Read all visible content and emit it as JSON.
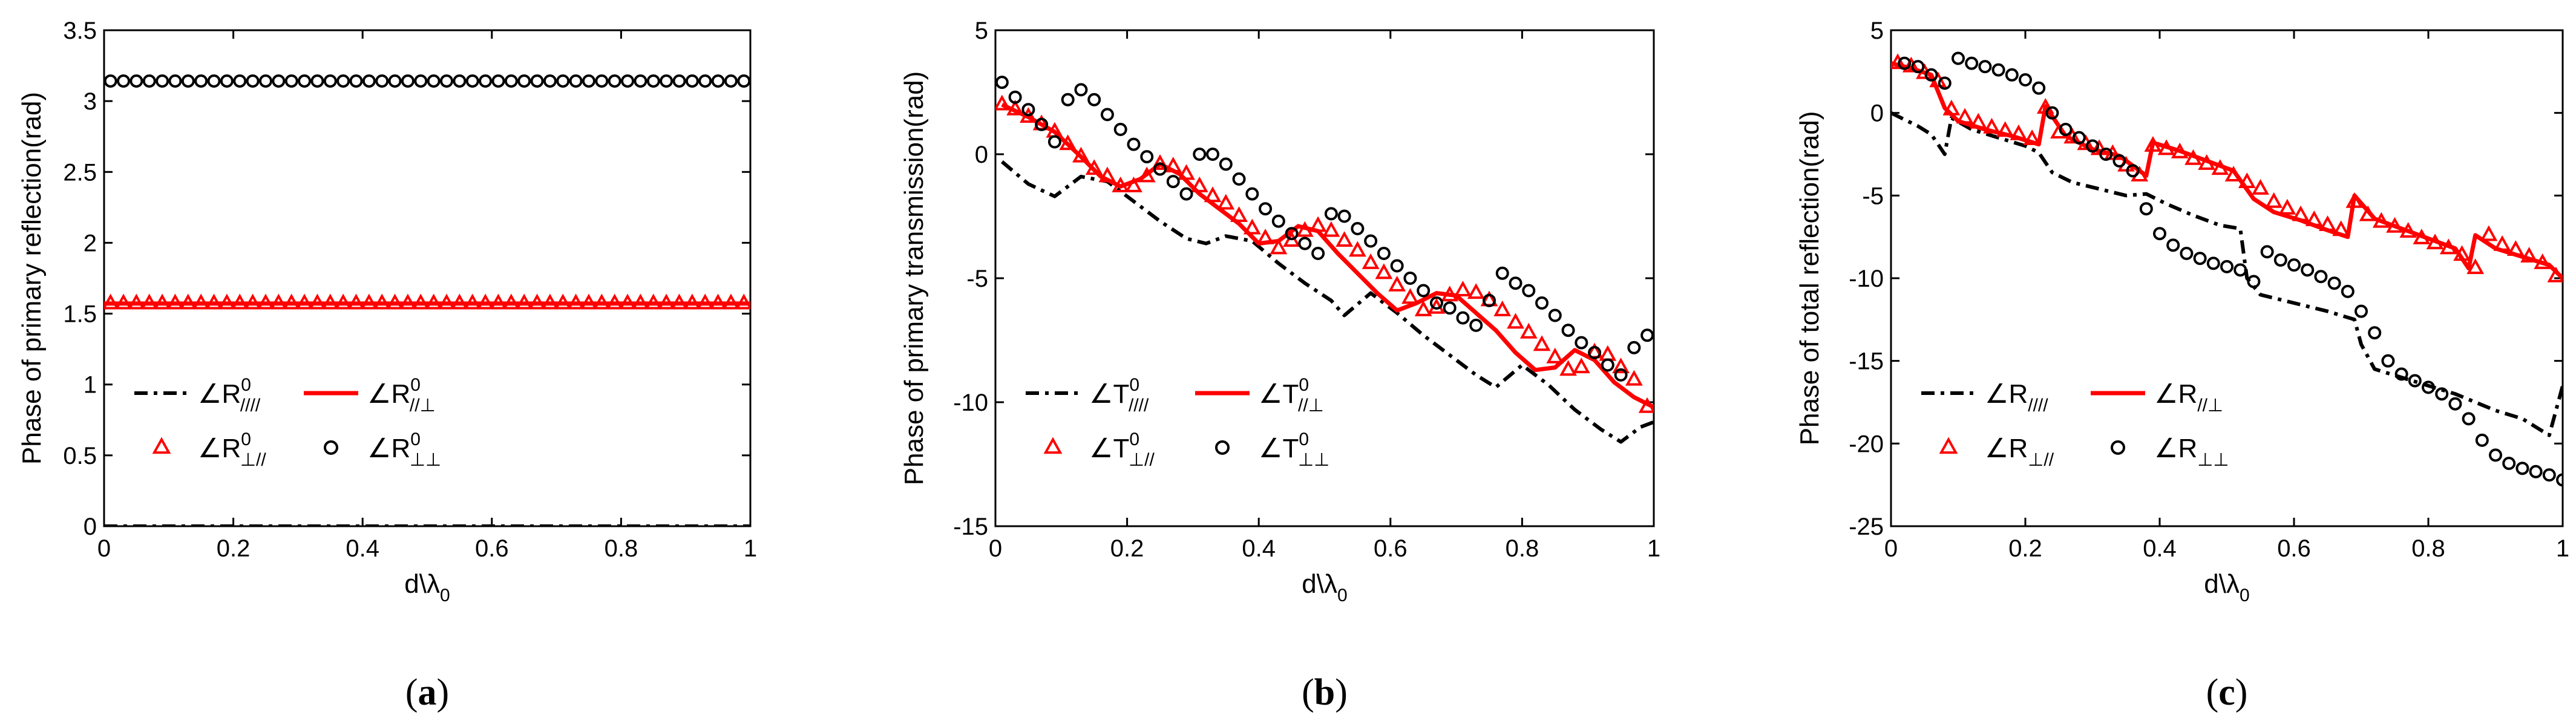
{
  "chart_data": [
    {
      "type": "line",
      "panel": "(a)",
      "panel_letter": "a",
      "xlabel": "d\\λ",
      "xlabel_sub": "0",
      "ylabel": "Phase of primary reflection(rad)",
      "xlim": [
        0,
        1
      ],
      "ylim": [
        0,
        3.5
      ],
      "xticks": [
        0,
        0.2,
        0.4,
        0.6,
        0.8,
        1
      ],
      "xtick_labels": [
        "0",
        "0.2",
        "0.4",
        "0.6",
        "0.8",
        "1"
      ],
      "yticks": [
        0,
        0.5,
        1,
        1.5,
        2,
        2.5,
        3,
        3.5
      ],
      "ytick_labels": [
        "0",
        "0.5",
        "1",
        "1.5",
        "2",
        "2.5",
        "3",
        "3.5"
      ],
      "legend": [
        {
          "symbol": "∠R",
          "sup": "0",
          "sub": "////",
          "style": "dash"
        },
        {
          "symbol": "∠R",
          "sup": "0",
          "sub": "//⊥",
          "style": "red-line"
        },
        {
          "symbol": "∠R",
          "sup": "0",
          "sub": "⊥//",
          "style": "red-triangle"
        },
        {
          "symbol": "∠R",
          "sup": "0",
          "sub": "⊥⊥",
          "style": "circle"
        }
      ],
      "series": [
        {
          "name": "∠R0 ////",
          "style": "dash",
          "x": [
            0,
            1
          ],
          "y": [
            0,
            0
          ]
        },
        {
          "name": "∠R0 //⊥",
          "style": "red-line",
          "x": [
            0,
            1
          ],
          "y": [
            1.571,
            1.571
          ]
        },
        {
          "name": "∠R0 ⊥//",
          "style": "red-triangle",
          "x_start": 0.01,
          "x_step": 0.02,
          "count": 50,
          "y_const": 1.571
        },
        {
          "name": "∠R0 ⊥⊥",
          "style": "circle",
          "x_start": 0.01,
          "x_step": 0.02,
          "count": 50,
          "y_const": 3.1416
        }
      ]
    },
    {
      "type": "line",
      "panel": "(b)",
      "panel_letter": "b",
      "xlabel": "d\\λ",
      "xlabel_sub": "0",
      "ylabel": "Phase of primary transmission(rad)",
      "xlim": [
        0,
        1
      ],
      "ylim": [
        -15,
        5
      ],
      "xticks": [
        0,
        0.2,
        0.4,
        0.6,
        0.8,
        1
      ],
      "xtick_labels": [
        "0",
        "0.2",
        "0.4",
        "0.6",
        "0.8",
        "1"
      ],
      "yticks": [
        -15,
        -10,
        -5,
        0,
        5
      ],
      "ytick_labels": [
        "-15",
        "-10",
        "-5",
        "0",
        "5"
      ],
      "legend": [
        {
          "symbol": "∠T",
          "sup": "0",
          "sub": "////",
          "style": "dash"
        },
        {
          "symbol": "∠T",
          "sup": "0",
          "sub": "//⊥",
          "style": "red-line"
        },
        {
          "symbol": "∠T",
          "sup": "0",
          "sub": "⊥//",
          "style": "red-triangle"
        },
        {
          "symbol": "∠T",
          "sup": "0",
          "sub": "⊥⊥",
          "style": "circle"
        }
      ],
      "series": [
        {
          "name": "∠T0 ////",
          "style": "dash",
          "x": [
            0.01,
            0.05,
            0.09,
            0.13,
            0.17,
            0.21,
            0.25,
            0.29,
            0.32,
            0.35,
            0.39,
            0.43,
            0.47,
            0.51,
            0.53,
            0.57,
            0.61,
            0.65,
            0.69,
            0.73,
            0.76,
            0.8,
            0.84,
            0.88,
            0.92,
            0.95,
            0.98,
            1.0
          ],
          "y": [
            -0.3,
            -1.2,
            -1.7,
            -0.9,
            -1.1,
            -1.9,
            -2.7,
            -3.4,
            -3.6,
            -3.3,
            -3.5,
            -4.4,
            -5.2,
            -5.9,
            -6.5,
            -5.6,
            -6.4,
            -7.3,
            -8.1,
            -8.9,
            -9.4,
            -8.5,
            -9.3,
            -10.3,
            -11.1,
            -11.6,
            -11.0,
            -10.8
          ]
        },
        {
          "name": "∠T0 //⊥",
          "style": "red-line",
          "x": [
            0.01,
            0.05,
            0.09,
            0.13,
            0.16,
            0.19,
            0.22,
            0.25,
            0.28,
            0.31,
            0.34,
            0.37,
            0.4,
            0.43,
            0.46,
            0.49,
            0.52,
            0.55,
            0.58,
            0.61,
            0.64,
            0.67,
            0.7,
            0.73,
            0.76,
            0.79,
            0.82,
            0.85,
            0.88,
            0.91,
            0.94,
            0.97,
            1.0
          ],
          "y": [
            2.0,
            1.5,
            0.9,
            -0.1,
            -0.9,
            -1.3,
            -1.0,
            -0.4,
            -0.8,
            -1.6,
            -2.2,
            -2.8,
            -3.6,
            -3.5,
            -2.9,
            -3.1,
            -4.0,
            -4.8,
            -5.6,
            -6.3,
            -6.0,
            -5.6,
            -5.7,
            -6.4,
            -7.1,
            -8.0,
            -8.7,
            -8.6,
            -7.9,
            -8.3,
            -9.2,
            -9.8,
            -10.2
          ]
        },
        {
          "name": "∠T0 ⊥//",
          "style": "red-triangle",
          "x_start": 0.01,
          "x_step": 0.02,
          "count": 50,
          "y": [
            2.0,
            1.8,
            1.5,
            1.2,
            0.9,
            0.4,
            -0.1,
            -0.6,
            -0.9,
            -1.3,
            -1.3,
            -0.9,
            -0.4,
            -0.5,
            -0.8,
            -1.3,
            -1.7,
            -2.0,
            -2.5,
            -3.0,
            -3.4,
            -3.8,
            -3.5,
            -3.1,
            -2.9,
            -3.1,
            -3.5,
            -3.9,
            -4.4,
            -4.8,
            -5.3,
            -5.8,
            -6.3,
            -6.2,
            -5.7,
            -5.5,
            -5.6,
            -5.9,
            -6.3,
            -6.8,
            -7.2,
            -7.7,
            -8.2,
            -8.7,
            -8.6,
            -8.0,
            -8.1,
            -8.6,
            -9.1,
            -10.2
          ]
        },
        {
          "name": "∠T0 ⊥⊥",
          "style": "circle",
          "x_start": 0.01,
          "x_step": 0.02,
          "count": 50,
          "y": [
            2.9,
            2.3,
            1.8,
            1.2,
            0.5,
            2.2,
            2.6,
            2.2,
            1.6,
            1.0,
            0.4,
            -0.1,
            -0.6,
            -1.1,
            -1.6,
            0.0,
            0.0,
            -0.4,
            -1.0,
            -1.6,
            -2.2,
            -2.7,
            -3.2,
            -3.6,
            -4.0,
            -2.4,
            -2.5,
            -3.0,
            -3.5,
            -4.0,
            -4.5,
            -5.0,
            -5.5,
            -6.0,
            -6.2,
            -6.6,
            -6.9,
            -5.9,
            -4.8,
            -5.2,
            -5.5,
            -6.0,
            -6.5,
            -7.1,
            -7.6,
            -8.0,
            -8.5,
            -8.9,
            -7.8,
            -7.3
          ]
        }
      ]
    },
    {
      "type": "line",
      "panel": "(c)",
      "panel_letter": "c",
      "xlabel": "d\\λ",
      "xlabel_sub": "0",
      "ylabel": "Phase of total reflection(rad)",
      "xlim": [
        0,
        1
      ],
      "ylim": [
        -25,
        5
      ],
      "xticks": [
        0,
        0.2,
        0.4,
        0.6,
        0.8,
        1
      ],
      "xtick_labels": [
        "0",
        "0.2",
        "0.4",
        "0.6",
        "0.8",
        "1"
      ],
      "yticks": [
        -25,
        -20,
        -15,
        -10,
        -5,
        0,
        5
      ],
      "ytick_labels": [
        "-25",
        "-20",
        "-15",
        "-10",
        "-5",
        "0",
        "5"
      ],
      "legend": [
        {
          "symbol": "∠R",
          "sup": "",
          "sub": "////",
          "style": "dash"
        },
        {
          "symbol": "∠R",
          "sup": "",
          "sub": "//⊥",
          "style": "red-line"
        },
        {
          "symbol": "∠R",
          "sup": "",
          "sub": "⊥//",
          "style": "red-triangle"
        },
        {
          "symbol": "∠R",
          "sup": "",
          "sub": "⊥⊥",
          "style": "circle"
        }
      ],
      "series": [
        {
          "name": "∠R ////",
          "style": "dash",
          "x": [
            0.0,
            0.04,
            0.06,
            0.08,
            0.09,
            0.12,
            0.16,
            0.2,
            0.22,
            0.24,
            0.27,
            0.31,
            0.35,
            0.38,
            0.41,
            0.45,
            0.49,
            0.52,
            0.53,
            0.55,
            0.6,
            0.65,
            0.69,
            0.7,
            0.72,
            0.76,
            0.8,
            0.84,
            0.87,
            0.9,
            0.94,
            0.98,
            1.0
          ],
          "y": [
            0.0,
            -0.8,
            -1.3,
            -2.5,
            -0.3,
            -1.0,
            -1.5,
            -2.0,
            -2.4,
            -3.6,
            -4.2,
            -4.6,
            -5.0,
            -4.9,
            -5.5,
            -6.2,
            -6.8,
            -7.0,
            -10.0,
            -11.0,
            -11.5,
            -12.0,
            -12.5,
            -14.0,
            -15.5,
            -16.0,
            -16.5,
            -17.0,
            -17.5,
            -18.0,
            -18.5,
            -19.5,
            -16.5
          ]
        },
        {
          "name": "∠R //⊥",
          "style": "red-line",
          "x": [
            0.0,
            0.03,
            0.06,
            0.08,
            0.1,
            0.14,
            0.18,
            0.22,
            0.23,
            0.26,
            0.3,
            0.34,
            0.38,
            0.39,
            0.43,
            0.47,
            0.51,
            0.54,
            0.57,
            0.61,
            0.65,
            0.68,
            0.69,
            0.72,
            0.76,
            0.8,
            0.84,
            0.86,
            0.87,
            0.9,
            0.94,
            0.98,
            1.0
          ],
          "y": [
            3.0,
            2.7,
            2.3,
            0.3,
            -0.5,
            -1.0,
            -1.4,
            -1.9,
            0.4,
            -1.4,
            -2.2,
            -2.6,
            -3.8,
            -1.8,
            -2.3,
            -2.9,
            -3.5,
            -5.2,
            -6.0,
            -6.5,
            -7.1,
            -7.5,
            -5.0,
            -6.4,
            -7.0,
            -7.6,
            -8.2,
            -9.4,
            -7.4,
            -8.2,
            -8.7,
            -9.2,
            -10.0
          ]
        },
        {
          "name": "∠R ⊥//",
          "style": "red-triangle",
          "x_start": 0.01,
          "x_step": 0.02,
          "count": 50,
          "y": [
            3.0,
            2.8,
            2.4,
            1.9,
            0.2,
            -0.3,
            -0.6,
            -0.9,
            -1.1,
            -1.3,
            -1.6,
            0.3,
            -1.2,
            -1.5,
            -1.9,
            -2.2,
            -2.5,
            -3.2,
            -3.8,
            -2.0,
            -2.2,
            -2.4,
            -2.8,
            -3.1,
            -3.4,
            -3.8,
            -4.2,
            -4.6,
            -5.4,
            -5.8,
            -6.2,
            -6.5,
            -6.8,
            -7.1,
            -5.4,
            -6.2,
            -6.6,
            -6.9,
            -7.2,
            -7.6,
            -7.9,
            -8.2,
            -8.6,
            -9.4,
            -7.4,
            -8.0,
            -8.3,
            -8.7,
            -9.1,
            -9.9
          ]
        },
        {
          "name": "∠R ⊥⊥",
          "style": "circle",
          "x_start": 0.02,
          "x_step": 0.02,
          "count": 50,
          "y": [
            3.0,
            2.8,
            2.3,
            1.8,
            3.3,
            3.0,
            2.8,
            2.6,
            2.3,
            2.0,
            1.5,
            0.0,
            -1.0,
            -1.5,
            -2.0,
            -2.5,
            -2.9,
            -3.5,
            -5.8,
            -7.3,
            -8.0,
            -8.5,
            -8.8,
            -9.1,
            -9.3,
            -9.5,
            -10.2,
            -8.4,
            -8.9,
            -9.2,
            -9.5,
            -9.9,
            -10.3,
            -10.8,
            -12.0,
            -13.3,
            -15.0,
            -15.8,
            -16.2,
            -16.6,
            -17.0,
            -17.6,
            -18.5,
            -19.8,
            -20.7,
            -21.2,
            -21.5,
            -21.7,
            -21.9,
            -22.2
          ]
        }
      ]
    }
  ]
}
